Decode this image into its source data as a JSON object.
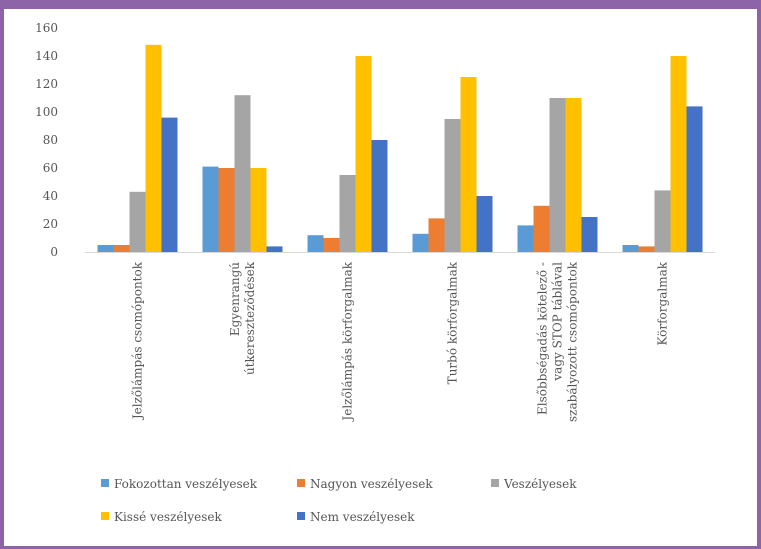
{
  "chart_data": {
    "type": "bar",
    "title": "",
    "xlabel": "",
    "ylabel": "",
    "ylim": [
      0,
      160
    ],
    "yticks": [
      0,
      20,
      40,
      60,
      80,
      100,
      120,
      140,
      160
    ],
    "grid": false,
    "legend_position": "bottom",
    "categories": [
      [
        "Jelzőlámpás csomópontok"
      ],
      [
        "Egyenrangú",
        "útkereszteződések"
      ],
      [
        "Jelzőlámpás körforgalmak"
      ],
      [
        "Turbó körforgalmak"
      ],
      [
        "Elsőbbségadás kötelező -",
        "vagy STOP táblával",
        "szabályozott csomópontok"
      ],
      [
        "Körforgalmak"
      ]
    ],
    "series": [
      {
        "name": "Fokozottan veszélyesek",
        "color": "#5b9bd5",
        "values": [
          5,
          61,
          12,
          13,
          19,
          5
        ]
      },
      {
        "name": "Nagyon veszélyesek",
        "color": "#ed7d31",
        "values": [
          5,
          60,
          10,
          24,
          33,
          4
        ]
      },
      {
        "name": "Veszélyesek",
        "color": "#a5a5a5",
        "values": [
          43,
          112,
          55,
          95,
          110,
          44
        ]
      },
      {
        "name": "Kissé veszélyesek",
        "color": "#ffc000",
        "values": [
          148,
          60,
          140,
          125,
          110,
          140
        ]
      },
      {
        "name": "Nem veszélyesek",
        "color": "#4472c4",
        "values": [
          96,
          4,
          80,
          40,
          25,
          104
        ]
      }
    ]
  }
}
